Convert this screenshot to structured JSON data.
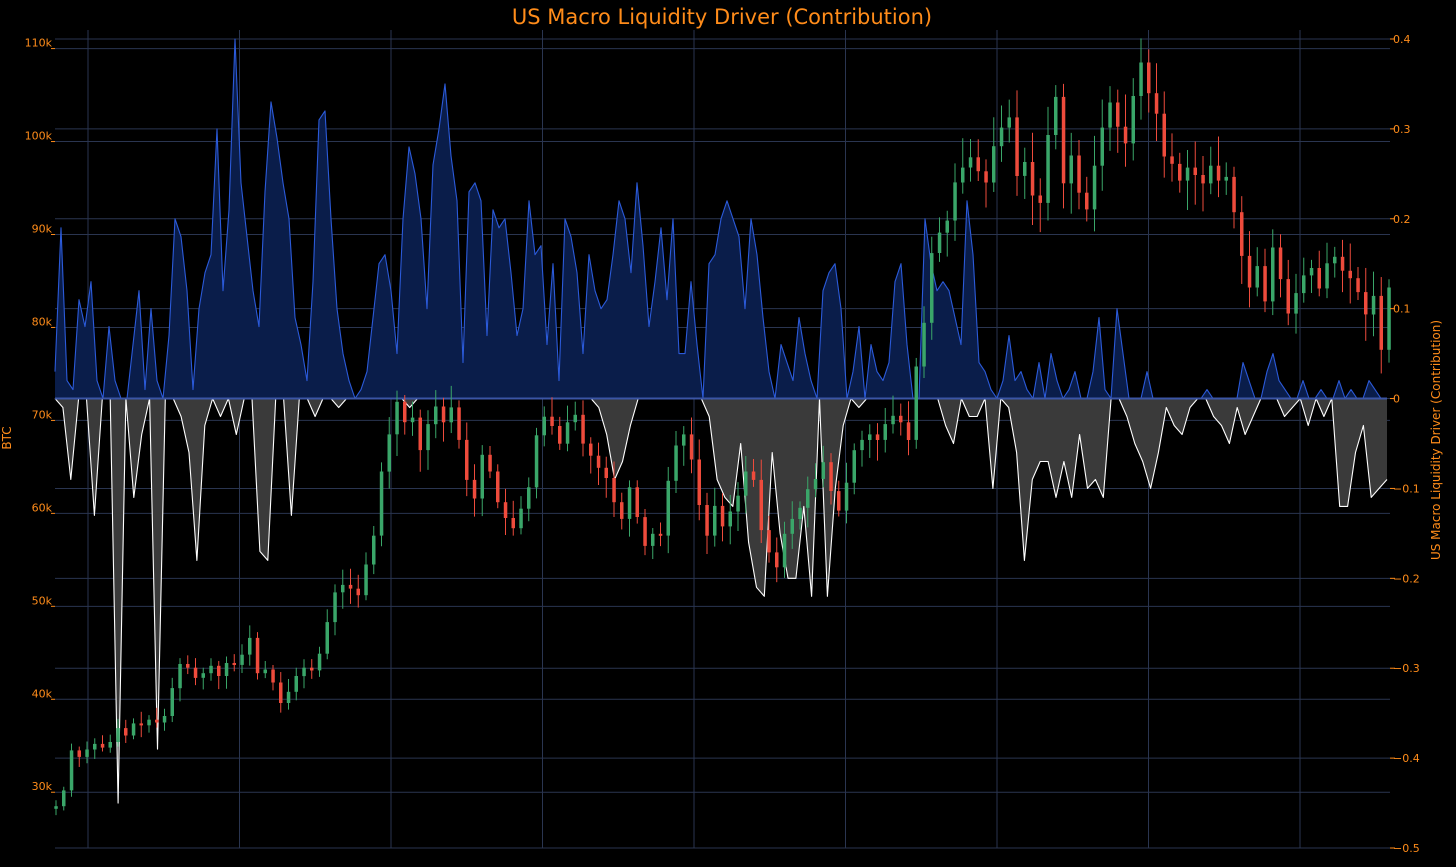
{
  "chart_data": {
    "type": "line",
    "title": "US Macro Liquidity Driver (Contribution)",
    "left_axis": {
      "label": "BTC",
      "ticks": [
        "30k",
        "40k",
        "50k",
        "60k",
        "70k",
        "80k",
        "90k",
        "100k",
        "110k"
      ],
      "tick_values": [
        30000,
        40000,
        50000,
        60000,
        70000,
        80000,
        90000,
        100000,
        110000
      ],
      "ylim": [
        24000,
        112000
      ]
    },
    "right_axis": {
      "label": "US Macro Liquidity Driver (Contribution)",
      "ticks": [
        "−0.5",
        "−0.4",
        "−0.3",
        "−0.2",
        "−0.1",
        "0",
        "0.1",
        "0.2",
        "0.3",
        "0.4"
      ],
      "tick_values": [
        -0.5,
        -0.4,
        -0.3,
        -0.2,
        -0.1,
        0,
        0.1,
        0.2,
        0.3,
        0.4
      ],
      "ylim": [
        -0.5,
        0.41
      ]
    },
    "grid": true,
    "colors": {
      "background": "#000000",
      "text": "#ff8c1a",
      "grid": "#2a3550",
      "candle_up": "#3aa669",
      "candle_down": "#ee4b3c",
      "positive_line": "#2b5ad9",
      "positive_fill": "#0a1d4a",
      "negative_line": "#ffffff",
      "negative_fill": "#3a3a3a",
      "zero_line": "#3b55a5"
    },
    "series": [
      {
        "name": "BTC",
        "kind": "candlestick",
        "axis": "left",
        "close": [
          28500,
          30200,
          34500,
          33800,
          34600,
          35200,
          34800,
          35400,
          36900,
          36100,
          37400,
          37200,
          37800,
          37500,
          38200,
          41200,
          43800,
          43400,
          42300,
          42800,
          43600,
          42500,
          43900,
          43700,
          44800,
          46600,
          42800,
          43200,
          41800,
          39600,
          40800,
          42500,
          43400,
          43100,
          44900,
          48300,
          51500,
          52300,
          51900,
          51200,
          54500,
          57600,
          64500,
          68500,
          72000,
          69800,
          70300,
          66800,
          69600,
          71500,
          69800,
          71400,
          67900,
          63600,
          61600,
          66300,
          64500,
          61200,
          59500,
          58400,
          60500,
          62800,
          68400,
          70400,
          69400,
          67500,
          69800,
          70600,
          67500,
          66200,
          64900,
          63800,
          61200,
          59400,
          62800,
          59600,
          56500,
          57800,
          57600,
          63500,
          67300,
          68500,
          65800,
          60900,
          57600,
          60800,
          58600,
          60200,
          61900,
          64500,
          63600,
          58200,
          55800,
          54200,
          57800,
          59400,
          60600,
          62600,
          63700,
          65500,
          62400,
          60300,
          63300,
          66800,
          67900,
          68500,
          67900,
          69600,
          70500,
          69800,
          67900,
          75800,
          80500,
          88000,
          90200,
          91500,
          95600,
          97200,
          98300,
          96800,
          95600,
          99500,
          101500,
          102600,
          96300,
          97800,
          94200,
          93400,
          100700,
          104800,
          95500,
          98500,
          94500,
          92700,
          97400,
          101500,
          104200,
          101600,
          99800,
          104900,
          108500,
          105200,
          103000,
          98400,
          97600,
          95800,
          97200,
          96400,
          95500,
          97400,
          95800,
          96200,
          92400,
          87700,
          84300,
          86600,
          82800,
          88600,
          85200,
          81500,
          83700,
          85600,
          86400,
          84200,
          86900,
          87600,
          86100,
          85300,
          83800,
          81400,
          83400,
          77600,
          84300
        ]
      },
      {
        "name": "US Macro Liquidity Driver (Contribution)",
        "kind": "area",
        "axis": "right",
        "values": [
          0.03,
          0.19,
          0.02,
          0.01,
          0.11,
          0.08,
          0.13,
          0.02,
          0.0,
          0.08,
          0.02,
          0.0,
          0.0,
          0.06,
          0.12,
          0.01,
          0.1,
          0.02,
          0.0,
          0.07,
          0.2,
          0.18,
          0.12,
          0.01,
          0.1,
          0.14,
          0.16,
          0.3,
          0.12,
          0.21,
          0.4,
          0.24,
          0.18,
          0.12,
          0.08,
          0.23,
          0.33,
          0.29,
          0.24,
          0.2,
          0.09,
          0.06,
          0.02,
          0.13,
          0.31,
          0.32,
          0.2,
          0.1,
          0.05,
          0.02,
          0.0,
          0.01,
          0.03,
          0.09,
          0.15,
          0.16,
          0.12,
          0.05,
          0.2,
          0.28,
          0.25,
          0.2,
          0.1,
          0.26,
          0.3,
          0.35,
          0.27,
          0.22,
          0.04,
          0.23,
          0.24,
          0.22,
          0.07,
          0.21,
          0.19,
          0.2,
          0.14,
          0.07,
          0.1,
          0.22,
          0.16,
          0.17,
          0.06,
          0.15,
          0.02,
          0.2,
          0.18,
          0.14,
          0.05,
          0.16,
          0.12,
          0.1,
          0.11,
          0.16,
          0.22,
          0.2,
          0.14,
          0.24,
          0.17,
          0.08,
          0.13,
          0.19,
          0.11,
          0.2,
          0.05,
          0.05,
          0.13,
          0.06,
          0.0,
          0.15,
          0.16,
          0.2,
          0.22,
          0.2,
          0.18,
          0.1,
          0.2,
          0.16,
          0.09,
          0.03,
          0.0,
          0.06,
          0.04,
          0.02,
          0.09,
          0.05,
          0.02,
          0.0,
          0.12,
          0.14,
          0.15,
          0.1,
          0.0,
          0.03,
          0.08,
          0.0,
          0.06,
          0.03,
          0.02,
          0.04,
          0.13,
          0.15,
          0.06,
          0.0,
          0.0,
          0.2,
          0.15,
          0.12,
          0.13,
          0.12,
          0.09,
          0.06,
          0.22,
          0.16,
          0.04,
          0.03,
          0.01,
          0.0,
          0.02,
          0.07,
          0.02,
          0.03,
          0.01,
          0.0,
          0.04,
          0.0,
          0.05,
          0.02,
          0.0,
          0.01,
          0.03,
          0.0,
          0.0,
          0.03,
          0.09,
          0.01,
          0.0,
          0.1,
          0.05,
          0.0,
          0.0,
          0.0,
          0.03,
          0.0,
          0.0,
          0.0,
          0.0,
          0.0,
          0.0,
          0.0,
          0.0,
          0.0,
          0.01,
          0.0,
          0.0,
          0.0,
          0.0,
          0.0,
          0.04,
          0.02,
          0.0,
          0.0,
          0.03,
          0.05,
          0.02,
          0.01,
          0.0,
          0.0,
          0.02,
          0.0,
          0.0,
          0.01,
          0.0,
          0.0,
          0.02,
          0.0,
          0.01,
          0.0,
          0.0,
          0.02,
          0.01,
          0.0,
          0.0
        ]
      },
      {
        "name": "US Macro Liquidity Driver (Contribution) negative",
        "kind": "area",
        "axis": "right",
        "values": [
          0.0,
          -0.01,
          -0.09,
          0.0,
          0.0,
          -0.13,
          0.0,
          0.0,
          -0.45,
          0.0,
          -0.11,
          -0.04,
          0.0,
          -0.39,
          0.0,
          0.0,
          -0.02,
          -0.06,
          -0.18,
          -0.03,
          0.0,
          -0.02,
          0.0,
          -0.04,
          0.0,
          0.0,
          -0.17,
          -0.18,
          0.0,
          0.0,
          -0.13,
          0.0,
          0.0,
          -0.02,
          0.0,
          0.0,
          -0.01,
          0.0,
          0.0,
          0.0,
          0.0,
          0.0,
          0.0,
          0.0,
          0.0,
          -0.01,
          0.0,
          0.0,
          0.0,
          0.0,
          0.0,
          0.0,
          0.0,
          0.0,
          0.0,
          0.0,
          0.0,
          0.0,
          0.0,
          0.0,
          0.0,
          0.0,
          0.0,
          0.0,
          0.0,
          0.0,
          0.0,
          0.0,
          0.0,
          -0.01,
          -0.04,
          -0.09,
          -0.07,
          -0.03,
          0.0,
          0.0,
          0.0,
          0.0,
          0.0,
          0.0,
          0.0,
          0.0,
          0.0,
          -0.02,
          -0.09,
          -0.11,
          -0.12,
          -0.05,
          -0.16,
          -0.21,
          -0.22,
          -0.06,
          -0.15,
          -0.2,
          -0.2,
          -0.12,
          -0.22,
          0.0,
          -0.22,
          -0.1,
          -0.03,
          0.0,
          -0.01,
          0.0,
          0.0,
          0.0,
          0.0,
          0.0,
          0.0,
          0.0,
          0.0,
          0.0,
          0.0,
          -0.03,
          -0.05,
          0.0,
          -0.02,
          -0.02,
          0.0,
          -0.1,
          0.0,
          -0.01,
          -0.06,
          -0.18,
          -0.09,
          -0.07,
          -0.07,
          -0.11,
          -0.07,
          -0.11,
          -0.04,
          -0.1,
          -0.09,
          -0.11,
          0.0,
          0.0,
          -0.02,
          -0.05,
          -0.07,
          -0.1,
          -0.06,
          -0.01,
          -0.03,
          -0.04,
          -0.01,
          0.0,
          0.0,
          -0.02,
          -0.03,
          -0.05,
          -0.01,
          -0.04,
          -0.02,
          0.0,
          0.0,
          0.0,
          -0.02,
          -0.01,
          0.0,
          -0.03,
          0.0,
          -0.02,
          0.0,
          -0.12,
          -0.12,
          -0.06,
          -0.03,
          -0.11,
          -0.1,
          -0.09
        ]
      }
    ]
  }
}
